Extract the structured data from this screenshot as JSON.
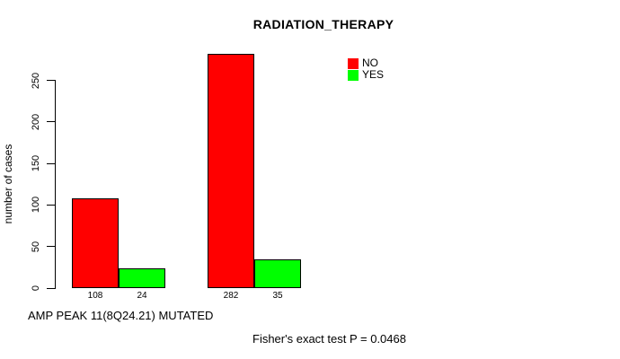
{
  "chart_data": {
    "type": "bar",
    "title": "RADIATION_THERAPY",
    "xlabel": "AMP PEAK 11(8Q24.21) MUTATED",
    "ylabel": "number of cases",
    "annotation": "Fisher's exact test P = 0.0468",
    "categories": [
      "group-1",
      "group-2"
    ],
    "series": [
      {
        "name": "NO",
        "color": "#ff0000",
        "values": [
          108,
          282
        ]
      },
      {
        "name": "YES",
        "color": "#00ff00",
        "values": [
          24,
          35
        ]
      }
    ],
    "bar_count_labels": [
      "108",
      "24",
      "282",
      "35"
    ],
    "yticks": [
      0,
      50,
      100,
      150,
      200,
      250
    ],
    "ylim": [
      0,
      290
    ],
    "grid": false,
    "legend_position": "top-right",
    "bar_border_color": "#000000"
  }
}
